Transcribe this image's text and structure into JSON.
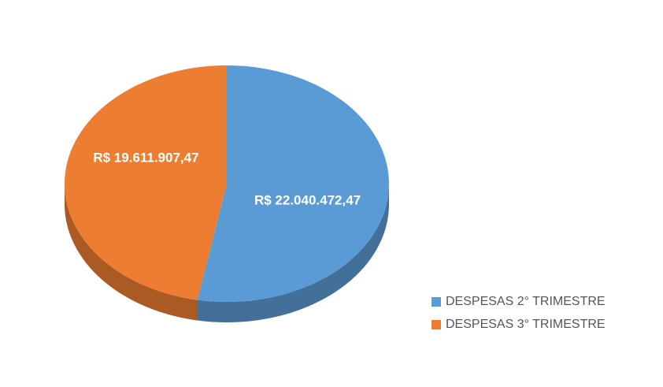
{
  "chart_data": {
    "type": "pie",
    "categories": [
      "DESPESAS 2° TRIMESTRE",
      "DESPESAS 3° TRIMESTRE"
    ],
    "values": [
      22040472.47,
      19611907.47
    ],
    "value_labels": [
      "R$ 22.040.472,47",
      "R$ 19.611.907,47"
    ],
    "colors": [
      "#5b9bd5",
      "#ed7d31"
    ],
    "legend": "right"
  }
}
